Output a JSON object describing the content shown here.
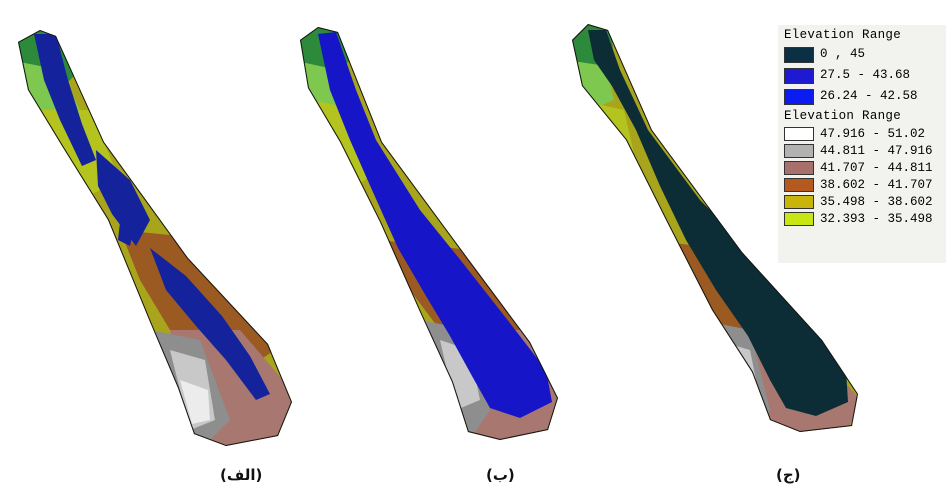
{
  "captions": {
    "alef": "(الف)",
    "be": "(ب)",
    "jim": "(ج)"
  },
  "legend": {
    "group1_title": "Elevation Range",
    "group1_items": [
      {
        "label": "0 , 45",
        "color": "#0b2f43"
      },
      {
        "label": "27.5 - 43.68",
        "color": "#1d1ad2"
      },
      {
        "label": "26.24 - 42.58",
        "color": "#0a1cf0"
      }
    ],
    "group2_title": "Elevation Range",
    "group2_items": [
      {
        "label": "47.916 - 51.02",
        "color": "#ffffff"
      },
      {
        "label": "44.811 - 47.916",
        "color": "#b2b2b2"
      },
      {
        "label": "41.707 - 44.811",
        "color": "#a8706a"
      },
      {
        "label": "38.602 - 41.707",
        "color": "#b45a1e"
      },
      {
        "label": "35.498 - 38.602",
        "color": "#c8b40a"
      },
      {
        "label": "32.393 - 35.498",
        "color": "#c8e614"
      }
    ]
  },
  "palette": {
    "green_dark": "#2d8a3a",
    "green_light": "#7ec850",
    "yellow_green": "#b4c31e",
    "olive": "#a6a21a",
    "brown": "#9a5a22",
    "mauve": "#a87870",
    "gray": "#8e8e8e",
    "light_gray": "#c8c8c8",
    "near_white": "#ececec",
    "navy_flood": "#14239c",
    "blue_flood": "#1616c8",
    "dark_teal_flood": "#0c2d35",
    "outline": "#151515"
  }
}
